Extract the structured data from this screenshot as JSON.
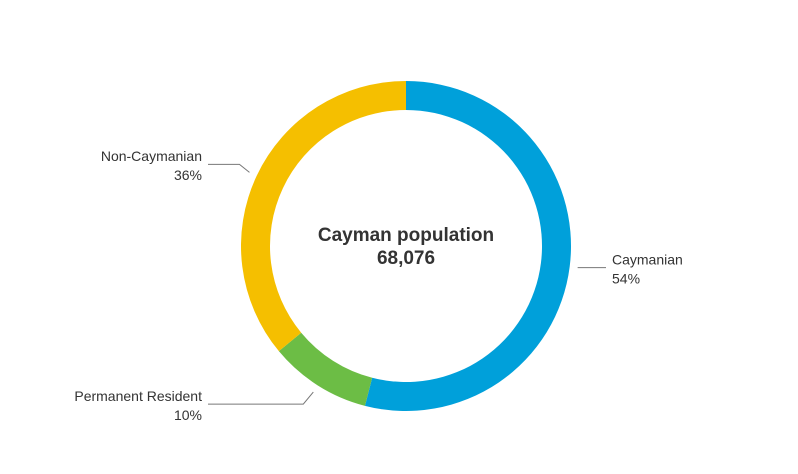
{
  "chart_data": {
    "type": "donut",
    "center_title": "Cayman population",
    "total": {
      "value": 68076,
      "label": "68,076"
    },
    "categories": [
      "Caymanian",
      "Permanent Resident",
      "Non-Caymanian"
    ],
    "values": [
      54,
      10,
      36
    ],
    "value_labels": [
      "54%",
      "10%",
      "36%"
    ],
    "colors": [
      "#00a0da",
      "#6cbd45",
      "#f5bf00"
    ]
  }
}
